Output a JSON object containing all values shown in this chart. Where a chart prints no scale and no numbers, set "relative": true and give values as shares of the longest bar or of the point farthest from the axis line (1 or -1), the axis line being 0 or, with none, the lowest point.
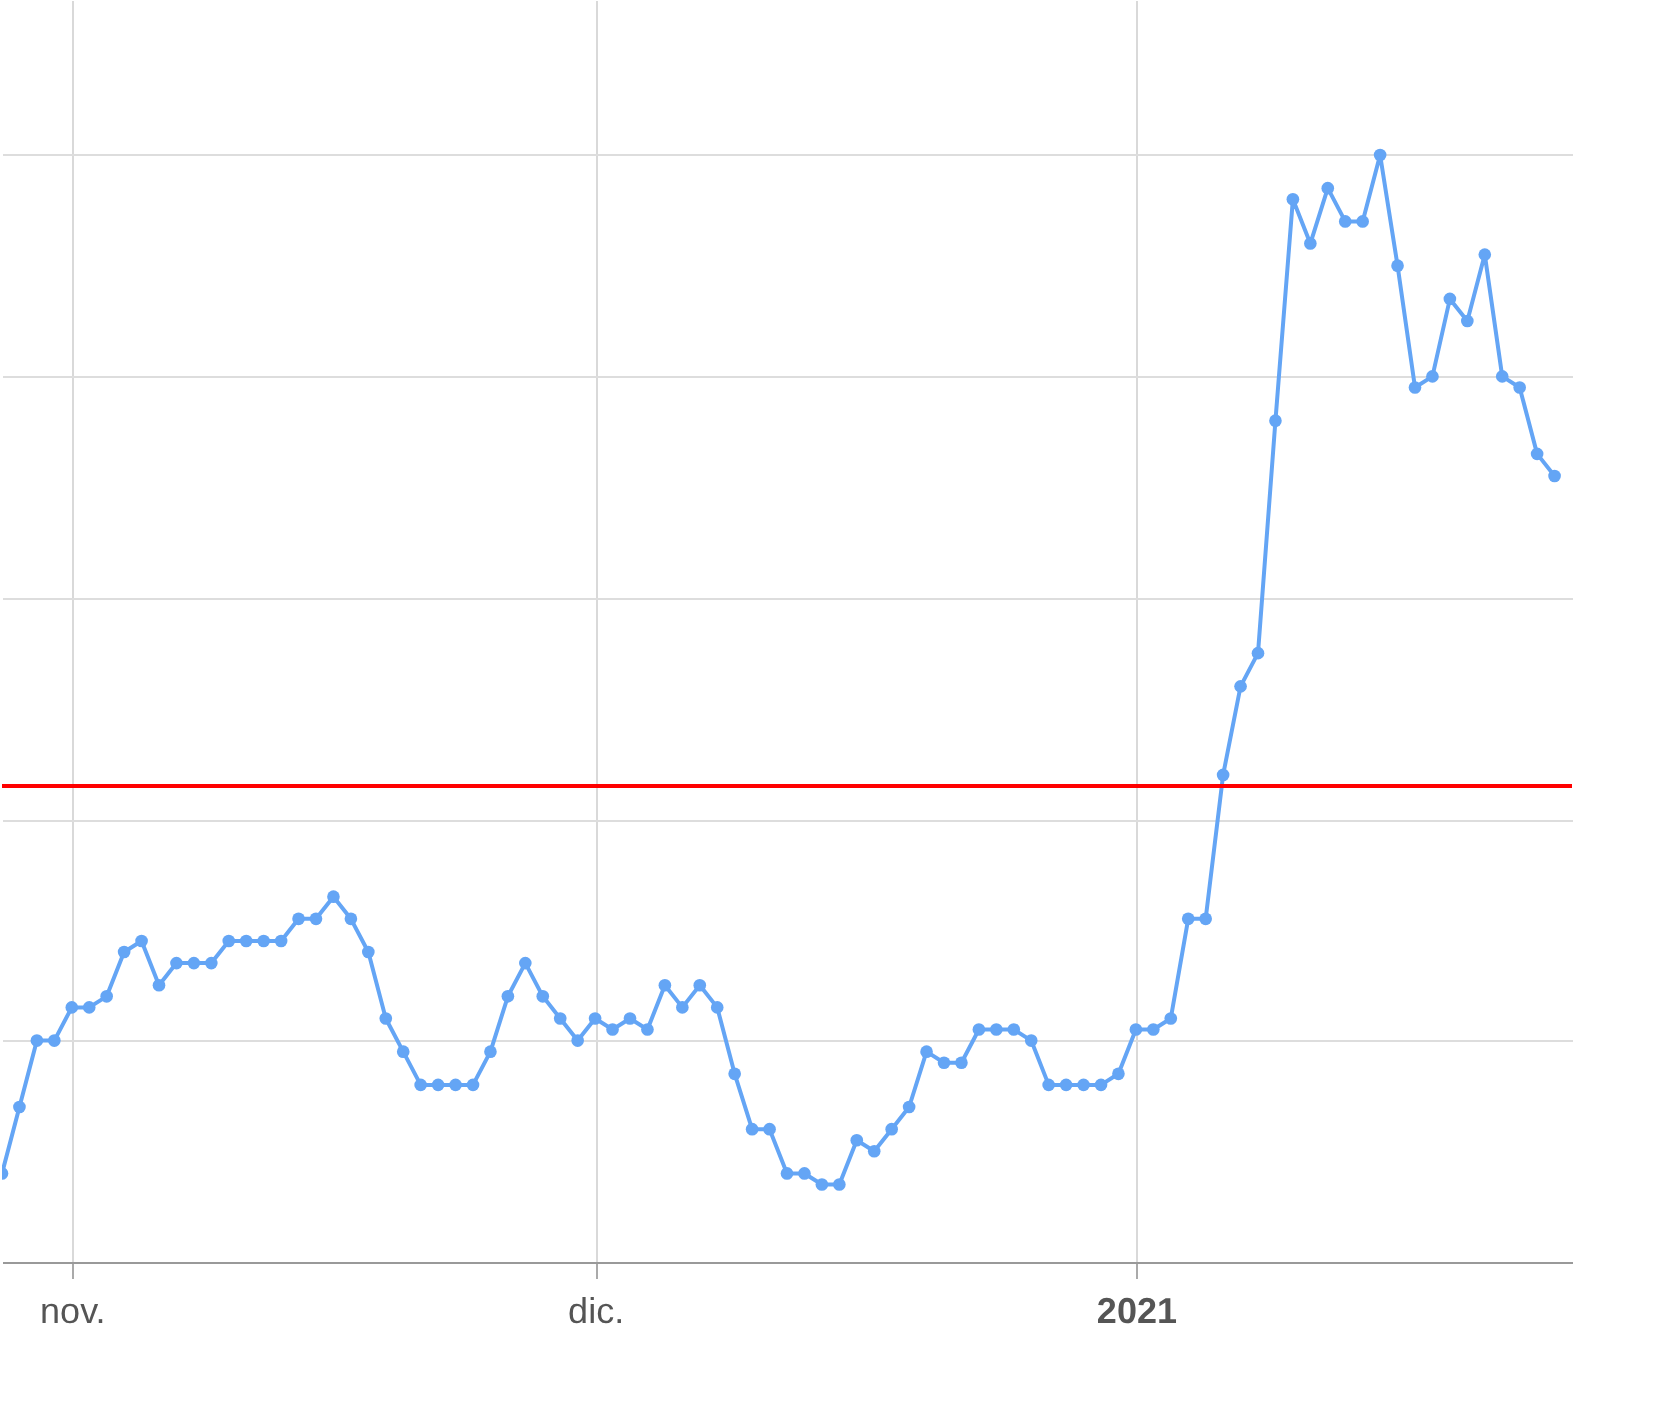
{
  "chart_data": {
    "type": "line",
    "relative": true,
    "grid": true,
    "marker": "circle",
    "line_style": "solid",
    "xlim": [
      "2020-10-28",
      "2021-01-26"
    ],
    "xticks": [
      {
        "value": "2020-11-01",
        "label": "nov."
      },
      {
        "value": "2020-12-01",
        "label": "dic."
      },
      {
        "value": "2021-01-01",
        "label": "2021"
      }
    ],
    "x": [
      "2020-10-28",
      "2020-10-29",
      "2020-10-30",
      "2020-10-31",
      "2020-11-01",
      "2020-11-02",
      "2020-11-03",
      "2020-11-04",
      "2020-11-05",
      "2020-11-06",
      "2020-11-07",
      "2020-11-08",
      "2020-11-09",
      "2020-11-10",
      "2020-11-11",
      "2020-11-12",
      "2020-11-13",
      "2020-11-14",
      "2020-11-15",
      "2020-11-16",
      "2020-11-17",
      "2020-11-18",
      "2020-11-19",
      "2020-11-20",
      "2020-11-21",
      "2020-11-22",
      "2020-11-23",
      "2020-11-24",
      "2020-11-25",
      "2020-11-26",
      "2020-11-27",
      "2020-11-28",
      "2020-11-29",
      "2020-11-30",
      "2020-12-01",
      "2020-12-02",
      "2020-12-03",
      "2020-12-04",
      "2020-12-05",
      "2020-12-06",
      "2020-12-07",
      "2020-12-08",
      "2020-12-09",
      "2020-12-10",
      "2020-12-11",
      "2020-12-12",
      "2020-12-13",
      "2020-12-14",
      "2020-12-15",
      "2020-12-16",
      "2020-12-17",
      "2020-12-18",
      "2020-12-19",
      "2020-12-20",
      "2020-12-21",
      "2020-12-22",
      "2020-12-23",
      "2020-12-24",
      "2020-12-25",
      "2020-12-26",
      "2020-12-27",
      "2020-12-28",
      "2020-12-29",
      "2020-12-30",
      "2020-12-31",
      "2021-01-01",
      "2021-01-02",
      "2021-01-03",
      "2021-01-04",
      "2021-01-05",
      "2021-01-06",
      "2021-01-07",
      "2021-01-08",
      "2021-01-09",
      "2021-01-10",
      "2021-01-11",
      "2021-01-12",
      "2021-01-13",
      "2021-01-14",
      "2021-01-15",
      "2021-01-16",
      "2021-01-17",
      "2021-01-18",
      "2021-01-19",
      "2021-01-20",
      "2021-01-21",
      "2021-01-22",
      "2021-01-23",
      "2021-01-24",
      "2021-01-25"
    ],
    "series": [
      {
        "color": "#64a5f5",
        "values": [
          0.08,
          0.14,
          0.2,
          0.2,
          0.23,
          0.23,
          0.24,
          0.28,
          0.29,
          0.25,
          0.27,
          0.27,
          0.27,
          0.29,
          0.29,
          0.29,
          0.29,
          0.31,
          0.31,
          0.33,
          0.31,
          0.28,
          0.22,
          0.19,
          0.16,
          0.16,
          0.16,
          0.16,
          0.19,
          0.24,
          0.27,
          0.24,
          0.22,
          0.2,
          0.22,
          0.21,
          0.22,
          0.21,
          0.25,
          0.23,
          0.25,
          0.23,
          0.17,
          0.12,
          0.12,
          0.08,
          0.08,
          0.07,
          0.07,
          0.11,
          0.1,
          0.12,
          0.14,
          0.19,
          0.18,
          0.18,
          0.21,
          0.21,
          0.21,
          0.2,
          0.16,
          0.16,
          0.16,
          0.16,
          0.17,
          0.21,
          0.21,
          0.22,
          0.31,
          0.31,
          0.44,
          0.52,
          0.55,
          0.76,
          0.96,
          0.92,
          0.97,
          0.94,
          0.94,
          1,
          0.9,
          0.79,
          0.8,
          0.87,
          0.85,
          0.91,
          0.8,
          0.79,
          0.73,
          0.71
        ]
      }
    ],
    "ref_lines": [
      {
        "axis": "y",
        "value": 0.43,
        "color": "#ff0000"
      }
    ]
  }
}
